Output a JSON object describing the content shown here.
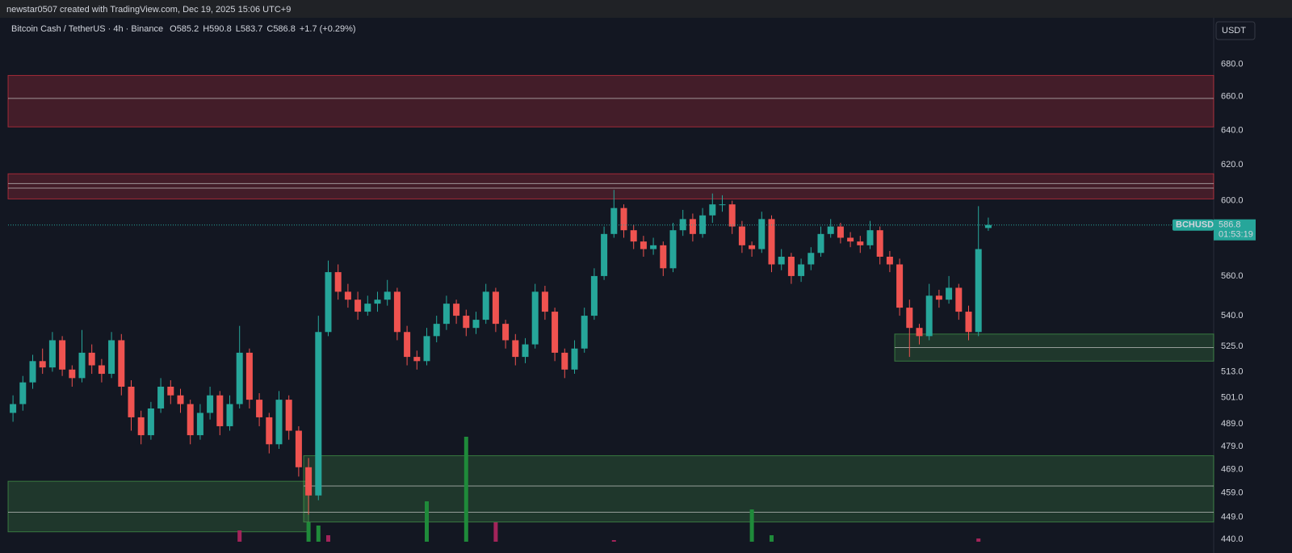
{
  "header": "newstar0507 created with TradingView.com, Dec 19, 2025 15:06 UTC+9",
  "chart_data": {
    "type": "candlestick",
    "symbol": "Bitcoin Cash / TetherUS · 4h · Binance",
    "ticker": "BCHUSDT",
    "currency": "USDT",
    "ohlc_letters": [
      "O",
      "H",
      "L",
      "C"
    ],
    "change_label": "+1.7 (+0.29%)",
    "countdown": "01:53:19",
    "log_scale": true,
    "ylim": [
      439,
      709
    ],
    "yticks": [
      {
        "value": 680,
        "label": "680.0"
      },
      {
        "value": 660,
        "label": "660.0"
      },
      {
        "value": 640,
        "label": "640.0"
      },
      {
        "value": 620,
        "label": "620.0"
      },
      {
        "value": 600,
        "label": "600.0"
      },
      {
        "value": 560,
        "label": "560.0"
      },
      {
        "value": 540,
        "label": "540.0"
      },
      {
        "value": 525,
        "label": "525.0"
      },
      {
        "value": 513,
        "label": "513.0"
      },
      {
        "value": 501,
        "label": "501.0"
      },
      {
        "value": 489,
        "label": "489.0"
      },
      {
        "value": 479,
        "label": "479.0"
      },
      {
        "value": 469,
        "label": "469.0"
      },
      {
        "value": 459,
        "label": "459.0"
      },
      {
        "value": 449,
        "label": "449.0"
      },
      {
        "value": 440,
        "label": "440.0"
      }
    ],
    "up_color": "#26a69a",
    "down_color": "#ef5350",
    "candles": [
      [
        494,
        502,
        490,
        498
      ],
      [
        498,
        511,
        495,
        508
      ],
      [
        508,
        521,
        505,
        518
      ],
      [
        518,
        524,
        512,
        515
      ],
      [
        515,
        532,
        513,
        528
      ],
      [
        528,
        530,
        511,
        514
      ],
      [
        514,
        516,
        506,
        510
      ],
      [
        510,
        533,
        508,
        522
      ],
      [
        522,
        526,
        512,
        516
      ],
      [
        516,
        519,
        508,
        512
      ],
      [
        512,
        532,
        510,
        528
      ],
      [
        528,
        531,
        502,
        506
      ],
      [
        506,
        509,
        486,
        492
      ],
      [
        492,
        495,
        480,
        484
      ],
      [
        484,
        499,
        482,
        496
      ],
      [
        496,
        510,
        494,
        506
      ],
      [
        506,
        509,
        498,
        502
      ],
      [
        502,
        505,
        494,
        498
      ],
      [
        498,
        500,
        480,
        484
      ],
      [
        484,
        498,
        482,
        494
      ],
      [
        494,
        506,
        491,
        502
      ],
      [
        502,
        504,
        484,
        488
      ],
      [
        488,
        502,
        486,
        498
      ],
      [
        498,
        535,
        496,
        522
      ],
      [
        522,
        524,
        496,
        500
      ],
      [
        500,
        503,
        488,
        492
      ],
      [
        492,
        494,
        476,
        480
      ],
      [
        480,
        504,
        478,
        500
      ],
      [
        500,
        502,
        482,
        486
      ],
      [
        486,
        488,
        466,
        470
      ],
      [
        470,
        474,
        450,
        458
      ],
      [
        458,
        540,
        456,
        532
      ],
      [
        532,
        568,
        530,
        562
      ],
      [
        562,
        566,
        548,
        552
      ],
      [
        552,
        556,
        544,
        548
      ],
      [
        548,
        552,
        538,
        542
      ],
      [
        542,
        550,
        540,
        546
      ],
      [
        546,
        552,
        542,
        548
      ],
      [
        548,
        558,
        545,
        552
      ],
      [
        552,
        554,
        528,
        532
      ],
      [
        532,
        535,
        516,
        520
      ],
      [
        520,
        523,
        514,
        518
      ],
      [
        518,
        534,
        516,
        530
      ],
      [
        530,
        540,
        527,
        536
      ],
      [
        536,
        550,
        533,
        546
      ],
      [
        546,
        548,
        536,
        540
      ],
      [
        540,
        543,
        530,
        534
      ],
      [
        534,
        542,
        531,
        538
      ],
      [
        538,
        556,
        536,
        552
      ],
      [
        552,
        554,
        532,
        536
      ],
      [
        536,
        538,
        524,
        528
      ],
      [
        528,
        531,
        516,
        520
      ],
      [
        520,
        529,
        517,
        526
      ],
      [
        526,
        556,
        524,
        552
      ],
      [
        552,
        555,
        538,
        542
      ],
      [
        542,
        544,
        518,
        522
      ],
      [
        522,
        524,
        510,
        514
      ],
      [
        514,
        528,
        512,
        524
      ],
      [
        524,
        544,
        522,
        540
      ],
      [
        540,
        564,
        538,
        560
      ],
      [
        560,
        586,
        558,
        582
      ],
      [
        582,
        606,
        580,
        596
      ],
      [
        596,
        598,
        580,
        584
      ],
      [
        584,
        587,
        574,
        578
      ],
      [
        578,
        581,
        570,
        574
      ],
      [
        574,
        580,
        571,
        576
      ],
      [
        576,
        578,
        560,
        564
      ],
      [
        564,
        588,
        562,
        584
      ],
      [
        584,
        595,
        581,
        590
      ],
      [
        590,
        593,
        578,
        582
      ],
      [
        582,
        596,
        580,
        592
      ],
      [
        592,
        604,
        588,
        598
      ],
      [
        598,
        603,
        594,
        598
      ],
      [
        598,
        600,
        582,
        586
      ],
      [
        586,
        589,
        572,
        576
      ],
      [
        576,
        578,
        570,
        574
      ],
      [
        574,
        594,
        572,
        590
      ],
      [
        590,
        592,
        562,
        566
      ],
      [
        566,
        574,
        563,
        570
      ],
      [
        570,
        572,
        556,
        560
      ],
      [
        560,
        569,
        557,
        566
      ],
      [
        566,
        575,
        563,
        572
      ],
      [
        572,
        586,
        570,
        582
      ],
      [
        582,
        590,
        580,
        586
      ],
      [
        586,
        588,
        577,
        580
      ],
      [
        580,
        583,
        575,
        578
      ],
      [
        578,
        581,
        572,
        576
      ],
      [
        576,
        589,
        574,
        584
      ],
      [
        584,
        586,
        566,
        570
      ],
      [
        570,
        573,
        562,
        566
      ],
      [
        566,
        569,
        540,
        544
      ],
      [
        544,
        548,
        520,
        534
      ],
      [
        534,
        536,
        526,
        530
      ],
      [
        530,
        556,
        528,
        550
      ],
      [
        550,
        553,
        544,
        548
      ],
      [
        548,
        560,
        546,
        554
      ],
      [
        554,
        556,
        538,
        542
      ],
      [
        542,
        545,
        528,
        532
      ],
      [
        532,
        597,
        530,
        574
      ],
      [
        585.2,
        590.8,
        583.7,
        586.8
      ]
    ],
    "volume": {
      "index": [
        23,
        30,
        31,
        32,
        42,
        46,
        49,
        61,
        75,
        77,
        98
      ],
      "values": [
        7,
        12,
        10,
        4,
        25,
        65,
        12,
        1,
        20,
        4,
        2
      ],
      "colors": [
        "#a3245a",
        "#1f8a3a",
        "#1f8a3a",
        "#a3245a",
        "#1f8a3a",
        "#1f8a3a",
        "#a3245a",
        "#a3245a",
        "#1f8a3a",
        "#1f8a3a",
        "#a3245a"
      ],
      "ylim": [
        0,
        100
      ]
    },
    "zones": [
      {
        "from": 0,
        "range": [
          642,
          673
        ],
        "lines": [
          659
        ],
        "color": "#f23645"
      },
      {
        "from": 0,
        "range": [
          601,
          615
        ],
        "lines": [
          607,
          609.5
        ],
        "color": "#f23645"
      },
      {
        "from": 90,
        "range": [
          518,
          531
        ],
        "lines": [
          524.5
        ],
        "color": "#4caf50"
      },
      {
        "from": 0,
        "to": 30,
        "range": [
          443,
          464
        ],
        "lines": [
          451
        ],
        "color": "#4caf50"
      },
      {
        "from": 30,
        "range": [
          447,
          475
        ],
        "lines": [
          462,
          451
        ],
        "color": "#4caf50"
      }
    ]
  }
}
